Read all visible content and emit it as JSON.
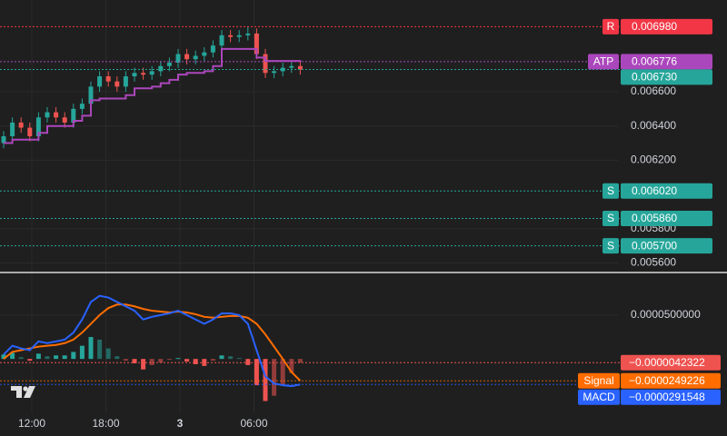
{
  "chart_data": [
    {
      "type": "candlestick",
      "open": [
        0.0063,
        0.00634,
        0.00642,
        0.00639,
        0.00634,
        0.00645,
        0.00648,
        0.00645,
        0.00642,
        0.0065,
        0.00653,
        0.00663,
        0.00669,
        0.00666,
        0.00663,
        0.00669,
        0.00671,
        0.0067,
        0.00672,
        0.00675,
        0.00677,
        0.00682,
        0.00679,
        0.00681,
        0.00683,
        0.00687,
        0.00693,
        0.00692,
        0.00693,
        0.00694,
        0.00682,
        0.00671,
        0.00672,
        0.00674,
        0.00675
      ],
      "high": [
        0.00637,
        0.00645,
        0.00645,
        0.00642,
        0.00648,
        0.00651,
        0.00651,
        0.00648,
        0.00653,
        0.00656,
        0.00666,
        0.00672,
        0.00672,
        0.00669,
        0.00672,
        0.00674,
        0.00674,
        0.00675,
        0.00678,
        0.0068,
        0.00685,
        0.00685,
        0.00684,
        0.00686,
        0.0069,
        0.00696,
        0.00696,
        0.00696,
        0.00698,
        0.00697,
        0.00685,
        0.00675,
        0.00677,
        0.00678,
        0.00678
      ],
      "low": [
        0.00627,
        0.00631,
        0.00636,
        0.00631,
        0.00631,
        0.00642,
        0.00642,
        0.00639,
        0.00639,
        0.00647,
        0.0065,
        0.0066,
        0.00663,
        0.0066,
        0.0066,
        0.00666,
        0.00667,
        0.00667,
        0.00669,
        0.00672,
        0.00674,
        0.00676,
        0.00676,
        0.00678,
        0.0068,
        0.00684,
        0.00689,
        0.00689,
        0.0069,
        0.00679,
        0.00668,
        0.00668,
        0.00669,
        0.00671,
        0.0067
      ],
      "close": [
        0.00634,
        0.00642,
        0.00639,
        0.00634,
        0.00645,
        0.00648,
        0.00645,
        0.00642,
        0.0065,
        0.00653,
        0.00663,
        0.00669,
        0.00666,
        0.00663,
        0.00669,
        0.00671,
        0.0067,
        0.00672,
        0.00675,
        0.00677,
        0.00682,
        0.00679,
        0.00681,
        0.00683,
        0.00687,
        0.00693,
        0.00692,
        0.00693,
        0.00694,
        0.00682,
        0.00671,
        0.00672,
        0.00674,
        0.00675,
        0.00673
      ],
      "up_color": "#26a69a",
      "down_color": "#ef5350",
      "atp": {
        "color": "#ab47bc",
        "values": [
          0.0063,
          0.00632,
          0.00632,
          0.00632,
          0.00636,
          0.0064,
          0.0064,
          0.0064,
          0.00643,
          0.00646,
          0.00655,
          0.00656,
          0.00656,
          0.00656,
          0.00658,
          0.00662,
          0.00662,
          0.00663,
          0.00665,
          0.00667,
          0.0067,
          0.00671,
          0.00671,
          0.00672,
          0.00675,
          0.00685,
          0.00685,
          0.00685,
          0.00685,
          0.0068,
          0.00678,
          0.00678,
          0.00678,
          0.00678,
          0.006776
        ]
      },
      "ylim": [
        0.005544,
        0.007136
      ],
      "yticks": [
        {
          "value": 0.0056,
          "label": "0.005600"
        },
        {
          "value": 0.0058,
          "label": "0.005800"
        },
        {
          "value": 0.0062,
          "label": "0.006200"
        },
        {
          "value": 0.0064,
          "label": "0.006400"
        },
        {
          "value": 0.0066,
          "label": "0.006600"
        }
      ],
      "levels": [
        {
          "tag": "R",
          "value": 0.00698,
          "label": "0.006980",
          "color": "#f23645"
        },
        {
          "tag": "ATP",
          "value": 0.006776,
          "label": "0.006776",
          "color": "#ab47bc"
        },
        {
          "value": 0.00673,
          "label": "0.006730",
          "color": "#26a69a"
        },
        {
          "tag": "S",
          "value": 0.00602,
          "label": "0.006020",
          "color": "#26a69a"
        },
        {
          "tag": "S",
          "value": 0.00586,
          "label": "0.005860",
          "color": "#26a69a"
        },
        {
          "tag": "S",
          "value": 0.0057,
          "label": "0.005700",
          "color": "#26a69a"
        }
      ]
    },
    {
      "type": "macd",
      "ylim": [
        -6.2e-05,
        9.65e-05
      ],
      "yticks": [
        {
          "value": 5e-05,
          "label": "0.0000500000"
        }
      ],
      "histogram": {
        "up_color": "#26a69a",
        "down_color": "#ef5350",
        "values": [
          5e-06,
          7e-06,
          2e-06,
          -2e-06,
          6e-06,
          3e-06,
          4e-06,
          4e-06,
          8e-06,
          1.5e-05,
          2.5e-05,
          2.2e-05,
          1.2e-05,
          3e-06,
          -2e-06,
          -5e-06,
          -1.2e-05,
          -7e-06,
          -4e-06,
          -1e-06,
          1e-06,
          -3e-06,
          -6e-06,
          -8e-06,
          -2e-06,
          4e-06,
          3e-06,
          1e-06,
          -7e-06,
          -3e-05,
          -4.8e-05,
          -4.2e-05,
          -3e-05,
          -1.6e-05,
          -4.2322e-06
        ],
        "last_label": "−0.0000042322",
        "label_color": "#ef5350"
      },
      "series": [
        {
          "name": "Signal",
          "color": "#ff6d00",
          "last_label": "−0.0000249226",
          "values": [
            0,
            8e-06,
            1e-05,
            1.2e-05,
            1.4e-05,
            1.5e-05,
            1.6e-05,
            1.8e-05,
            2.2e-05,
            3e-05,
            4e-05,
            5e-05,
            5.8e-05,
            6.2e-05,
            6.2e-05,
            6e-05,
            5.7e-05,
            5.5e-05,
            5.4e-05,
            5.3e-05,
            5.4e-05,
            5.3e-05,
            5.1e-05,
            4.8e-05,
            4.7e-05,
            4.8e-05,
            4.9e-05,
            4.9e-05,
            4.7e-05,
            4e-05,
            2.8e-05,
            1.4e-05,
            0,
            -1.5e-05,
            -2.49226e-05
          ]
        },
        {
          "name": "MACD",
          "color": "#2962ff",
          "last_label": "−0.0000291548",
          "values": [
            5e-06,
            1.5e-05,
            1.2e-05,
            1e-05,
            2e-05,
            1.8e-05,
            2e-05,
            2.2e-05,
            3e-05,
            4.5e-05,
            6.5e-05,
            7.2e-05,
            7e-05,
            6.5e-05,
            6e-05,
            5.5e-05,
            4.5e-05,
            4.8e-05,
            5e-05,
            5.2e-05,
            5.5e-05,
            5e-05,
            4.5e-05,
            4e-05,
            4.5e-05,
            5.2e-05,
            5.2e-05,
            5e-05,
            4e-05,
            1e-05,
            -2e-05,
            -2.8e-05,
            -3e-05,
            -3.1e-05,
            -2.91548e-05
          ]
        }
      ]
    }
  ],
  "time_axis": {
    "labels": [
      "12:00",
      "18:00",
      "3",
      "06:00"
    ]
  }
}
